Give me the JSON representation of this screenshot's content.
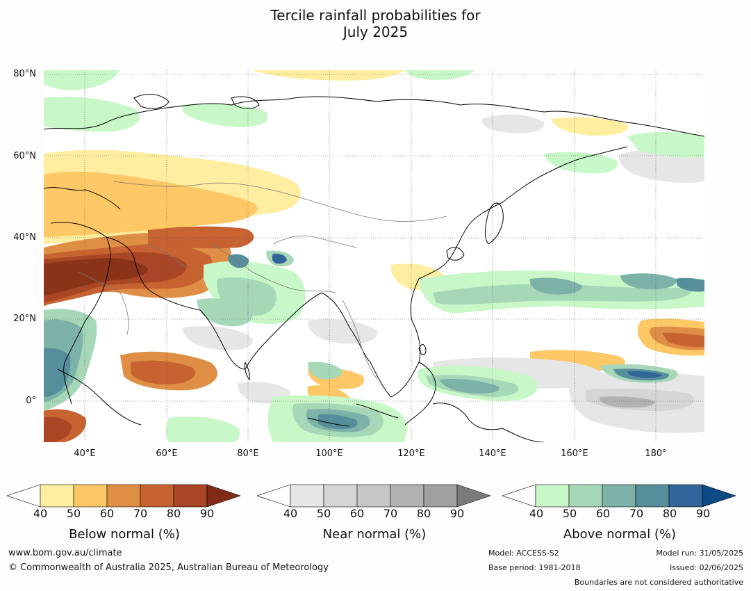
{
  "title": {
    "line1": "Tercile rainfall probabilities for",
    "line2": "July 2025"
  },
  "map": {
    "lat_labels": [
      "80°N",
      "60°N",
      "40°N",
      "20°N",
      "0°"
    ],
    "lon_labels": [
      "40°E",
      "60°E",
      "80°E",
      "100°E",
      "120°E",
      "140°E",
      "160°E",
      "180°"
    ]
  },
  "colorbars": [
    {
      "title": "Below normal (%)",
      "ticks": [
        "40",
        "50",
        "60",
        "70",
        "80",
        "90"
      ],
      "colors": [
        "#ffffff",
        "#ffeea0",
        "#fdc865",
        "#df8e45",
        "#c76231",
        "#a94625",
        "#7f2b17"
      ]
    },
    {
      "title": "Near normal (%)",
      "ticks": [
        "40",
        "50",
        "60",
        "70",
        "80",
        "90"
      ],
      "colors": [
        "#ffffff",
        "#e6e6e6",
        "#d5d5d5",
        "#c6c6c6",
        "#b2b2b2",
        "#a0a0a0",
        "#7a7a7a"
      ]
    },
    {
      "title": "Above normal (%)",
      "ticks": [
        "40",
        "50",
        "60",
        "70",
        "80",
        "90"
      ],
      "colors": [
        "#ffffff",
        "#c8f8c8",
        "#a6d8b8",
        "#7db2a8",
        "#568e9c",
        "#32669a",
        "#0d4a85"
      ]
    }
  ],
  "footer": {
    "website": "www.bom.gov.au/climate",
    "copyright": "© Commonwealth of Australia 2025, Australian Bureau of Meteorology",
    "model": "Model: ACCESS-S2",
    "base_period": "Base period: 1981-2018",
    "model_run": "Model run: 31/05/2025",
    "issued": "Issued: 02/06/2025",
    "disclaimer": "Boundaries are not considered authoritative"
  }
}
